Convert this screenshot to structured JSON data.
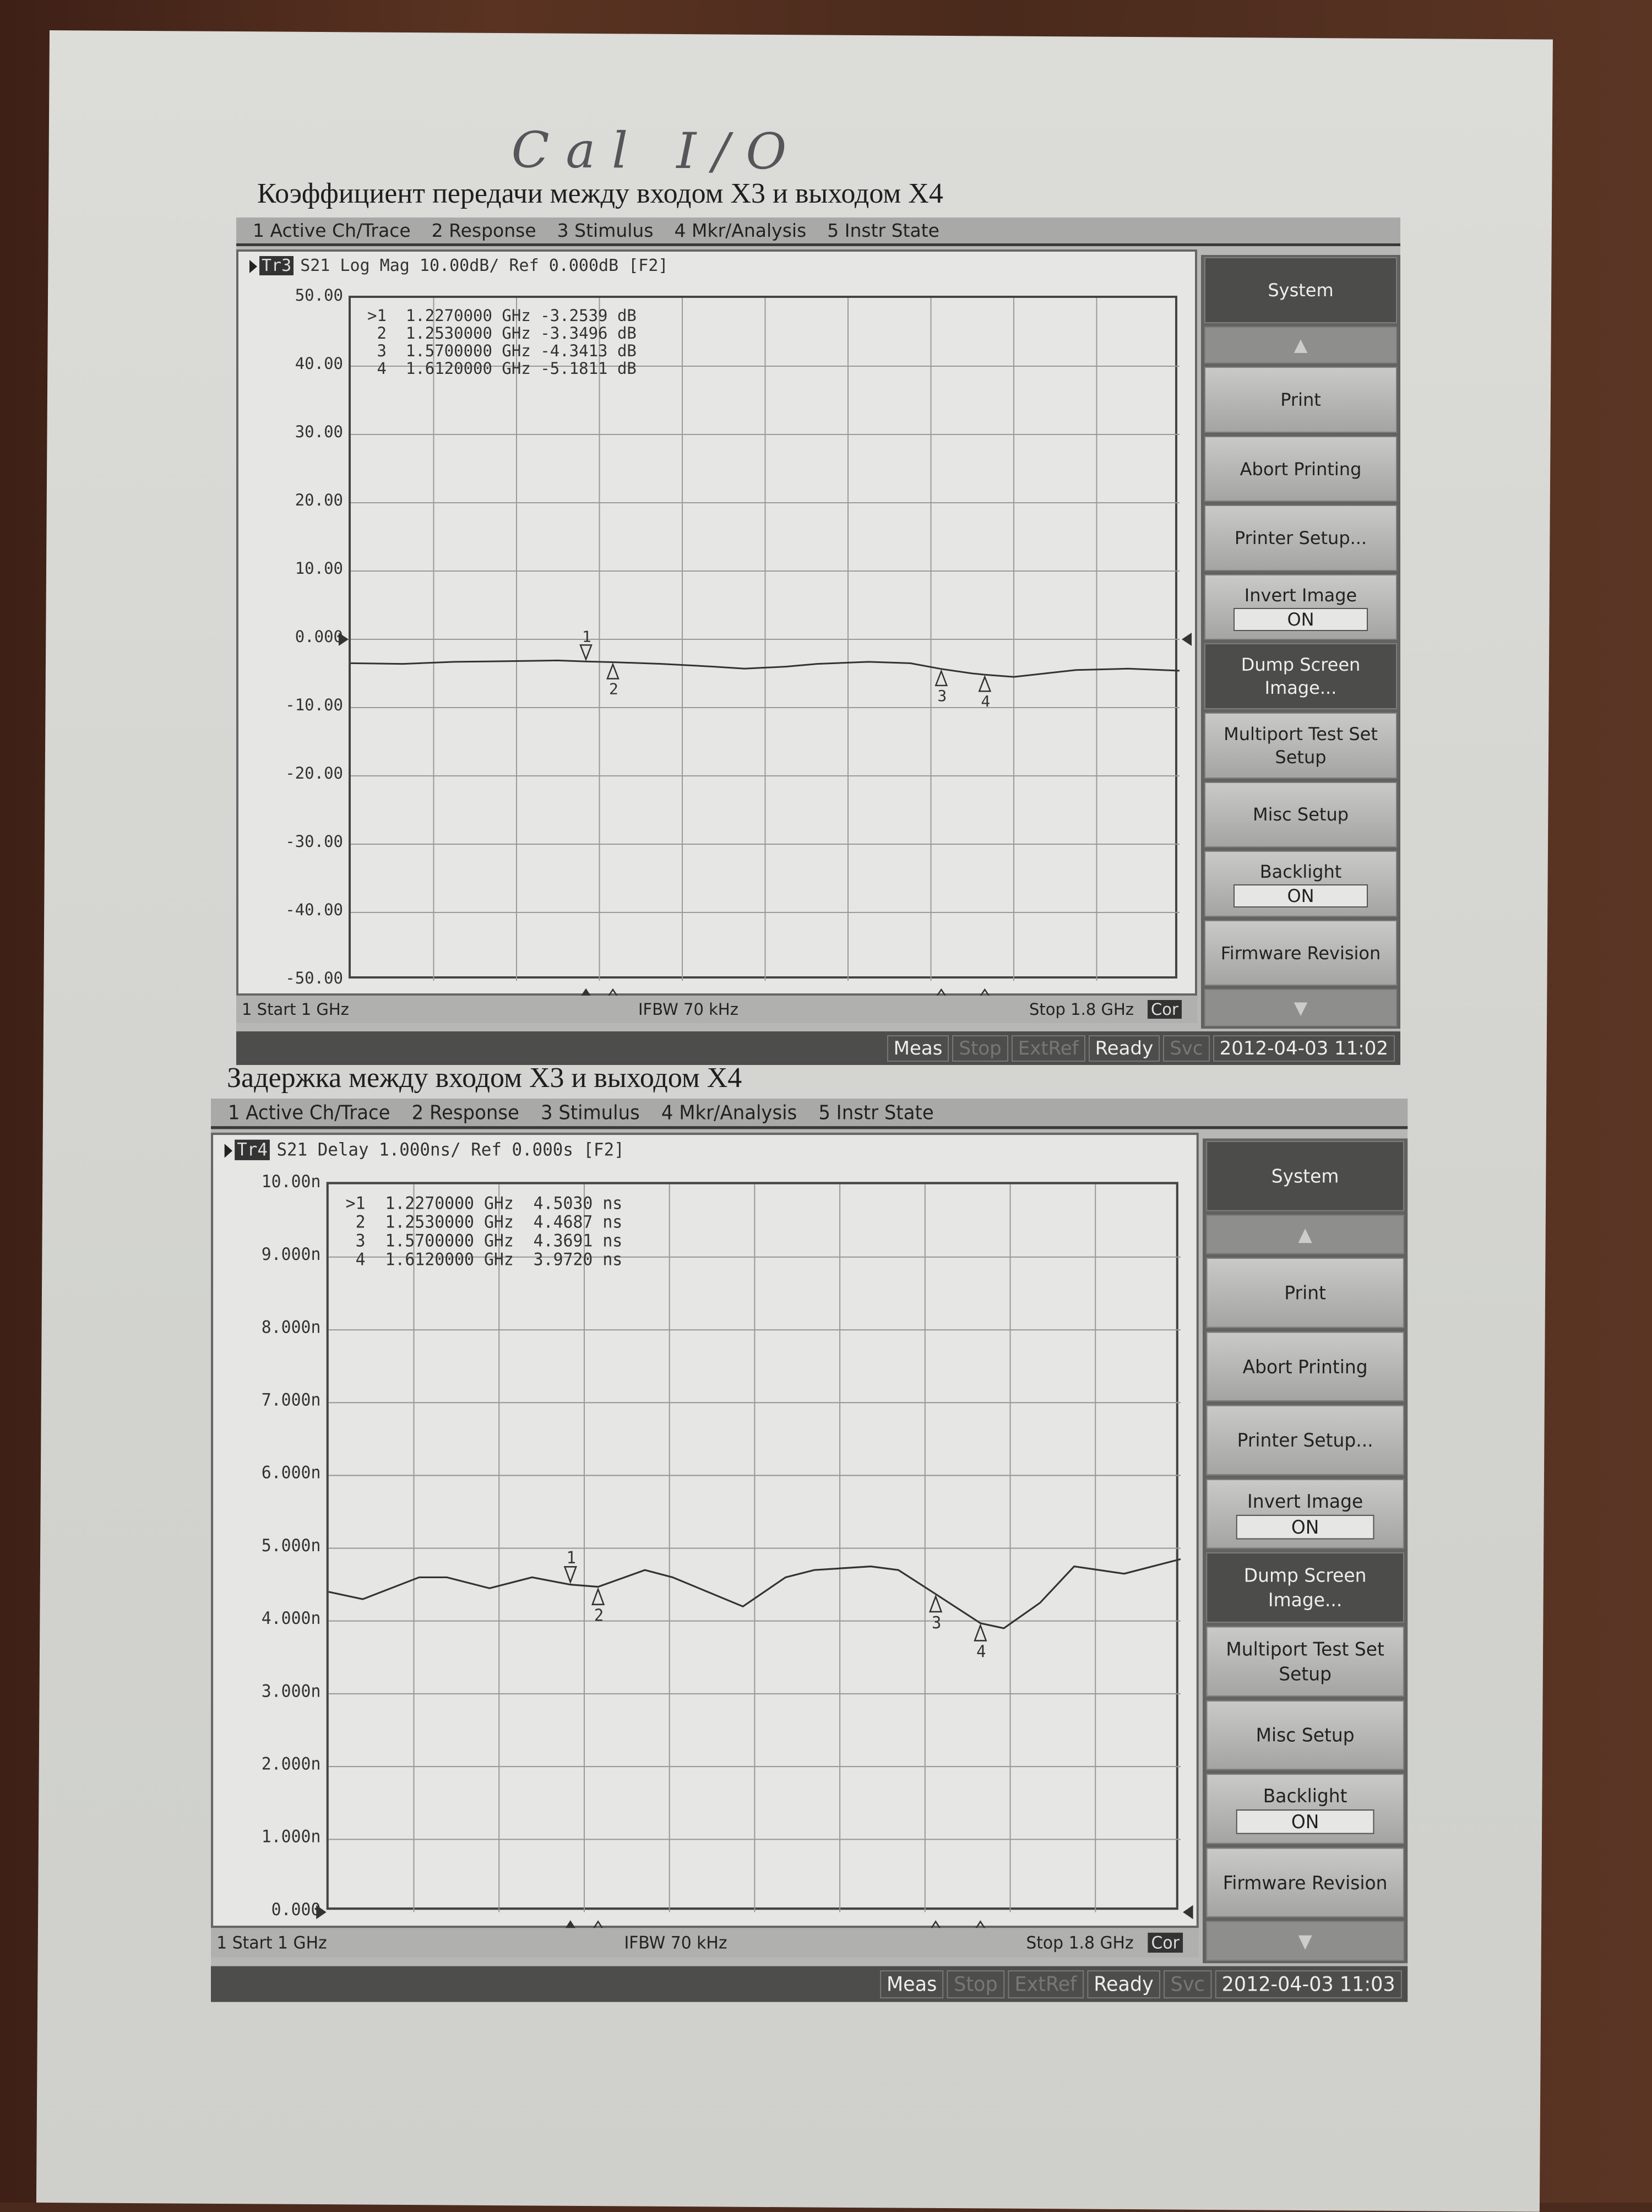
{
  "handwritten_note": "Cal I/O",
  "charts": [
    {
      "type": "line",
      "title": "Коэффициент передачи между входом X3 и выходом X4",
      "menu": [
        "1 Active Ch/Trace",
        "2 Response",
        "3 Stimulus",
        "4 Mkr/Analysis",
        "5 Instr State"
      ],
      "trace_badge": "Tr3",
      "trace_header": "S21 Log Mag 10.00dB/ Ref 0.000dB [F2]",
      "yticks": [
        "50.00",
        "40.00",
        "30.00",
        "20.00",
        "10.00",
        "0.000",
        "-10.00",
        "-20.00",
        "-30.00",
        "-40.00",
        "-50.00"
      ],
      "ylim": [
        -50,
        50
      ],
      "xlim": [
        1.0,
        1.8
      ],
      "x_unit": "GHz",
      "grid": true,
      "markers": [
        {
          "label": "1",
          "active": true,
          "freq": 1.227,
          "value": -3.2539,
          "text": ">1  1.2270000 GHz -3.2539 dB"
        },
        {
          "label": "2",
          "active": false,
          "freq": 1.253,
          "value": -3.3496,
          "text": " 2  1.2530000 GHz -3.3496 dB"
        },
        {
          "label": "3",
          "active": false,
          "freq": 1.57,
          "value": -4.3413,
          "text": " 3  1.5700000 GHz -4.3413 dB"
        },
        {
          "label": "4",
          "active": false,
          "freq": 1.612,
          "value": -5.1811,
          "text": " 4  1.6120000 GHz -5.1811 dB"
        }
      ],
      "series": [
        {
          "x": [
            1.0,
            1.05,
            1.1,
            1.15,
            1.2,
            1.227,
            1.253,
            1.3,
            1.35,
            1.38,
            1.42,
            1.45,
            1.5,
            1.54,
            1.57,
            1.6,
            1.612,
            1.64,
            1.67,
            1.7,
            1.75,
            1.8
          ],
          "y": [
            -3.5,
            -3.6,
            -3.3,
            -3.2,
            -3.1,
            -3.25,
            -3.35,
            -3.6,
            -4.0,
            -4.3,
            -4.0,
            -3.6,
            -3.3,
            -3.5,
            -4.34,
            -5.0,
            -5.18,
            -5.5,
            -5.0,
            -4.5,
            -4.3,
            -4.6
          ]
        }
      ],
      "start_label": "1  Start 1 GHz",
      "ifbw_label": "IFBW 70 kHz",
      "stop_label": "Stop 1.8 GHz",
      "cor_label": "Cor",
      "softkeys": [
        "System",
        "▲",
        "Print",
        "Abort Printing",
        "Printer Setup...",
        "Invert Image",
        "Dump Screen Image...",
        "Multiport Test Set Setup",
        "Misc Setup",
        "Backlight",
        "Firmware Revision",
        "▼"
      ],
      "invert_value": "ON",
      "backlight_value": "ON",
      "status": [
        "Meas",
        "Stop",
        "ExtRef",
        "Ready",
        "Svc"
      ],
      "datetime": "2012-04-03 11:02"
    },
    {
      "type": "line",
      "title": "Задержка между входом X3 и выходом X4",
      "menu": [
        "1 Active Ch/Trace",
        "2 Response",
        "3 Stimulus",
        "4 Mkr/Analysis",
        "5 Instr State"
      ],
      "trace_badge": "Tr4",
      "trace_header": "S21 Delay 1.000ns/ Ref 0.000s [F2]",
      "yticks": [
        "10.00n",
        "9.000n",
        "8.000n",
        "7.000n",
        "6.000n",
        "5.000n",
        "4.000n",
        "3.000n",
        "2.000n",
        "1.000n",
        "0.000"
      ],
      "ylim": [
        0,
        10
      ],
      "xlim": [
        1.0,
        1.8
      ],
      "x_unit": "GHz",
      "grid": true,
      "markers": [
        {
          "label": "1",
          "active": true,
          "freq": 1.227,
          "value": 4.503,
          "text": ">1  1.2270000 GHz  4.5030 ns"
        },
        {
          "label": "2",
          "active": false,
          "freq": 1.253,
          "value": 4.4687,
          "text": " 2  1.2530000 GHz  4.4687 ns"
        },
        {
          "label": "3",
          "active": false,
          "freq": 1.57,
          "value": 4.3691,
          "text": " 3  1.5700000 GHz  4.3691 ns"
        },
        {
          "label": "4",
          "active": false,
          "freq": 1.612,
          "value": 3.972,
          "text": " 4  1.6120000 GHz  3.9720 ns"
        }
      ],
      "series": [
        {
          "x": [
            1.0,
            1.032,
            1.085,
            1.111,
            1.151,
            1.191,
            1.227,
            1.253,
            1.297,
            1.323,
            1.389,
            1.429,
            1.456,
            1.509,
            1.535,
            1.57,
            1.612,
            1.634,
            1.668,
            1.7,
            1.747,
            1.8
          ],
          "y": [
            4.4,
            4.3,
            4.6,
            4.6,
            4.45,
            4.6,
            4.5,
            4.47,
            4.7,
            4.6,
            4.2,
            4.6,
            4.7,
            4.75,
            4.7,
            4.37,
            3.97,
            3.9,
            4.25,
            4.75,
            4.65,
            4.85
          ]
        }
      ],
      "start_label": "1  Start 1 GHz",
      "ifbw_label": "IFBW 70 kHz",
      "stop_label": "Stop 1.8 GHz",
      "cor_label": "Cor",
      "softkeys": [
        "System",
        "▲",
        "Print",
        "Abort Printing",
        "Printer Setup...",
        "Invert Image",
        "Dump Screen Image...",
        "Multiport Test Set Setup",
        "Misc Setup",
        "Backlight",
        "Firmware Revision",
        "▼"
      ],
      "invert_value": "ON",
      "backlight_value": "ON",
      "status": [
        "Meas",
        "Stop",
        "ExtRef",
        "Ready",
        "Svc"
      ],
      "datetime": "2012-04-03 11:03"
    }
  ]
}
